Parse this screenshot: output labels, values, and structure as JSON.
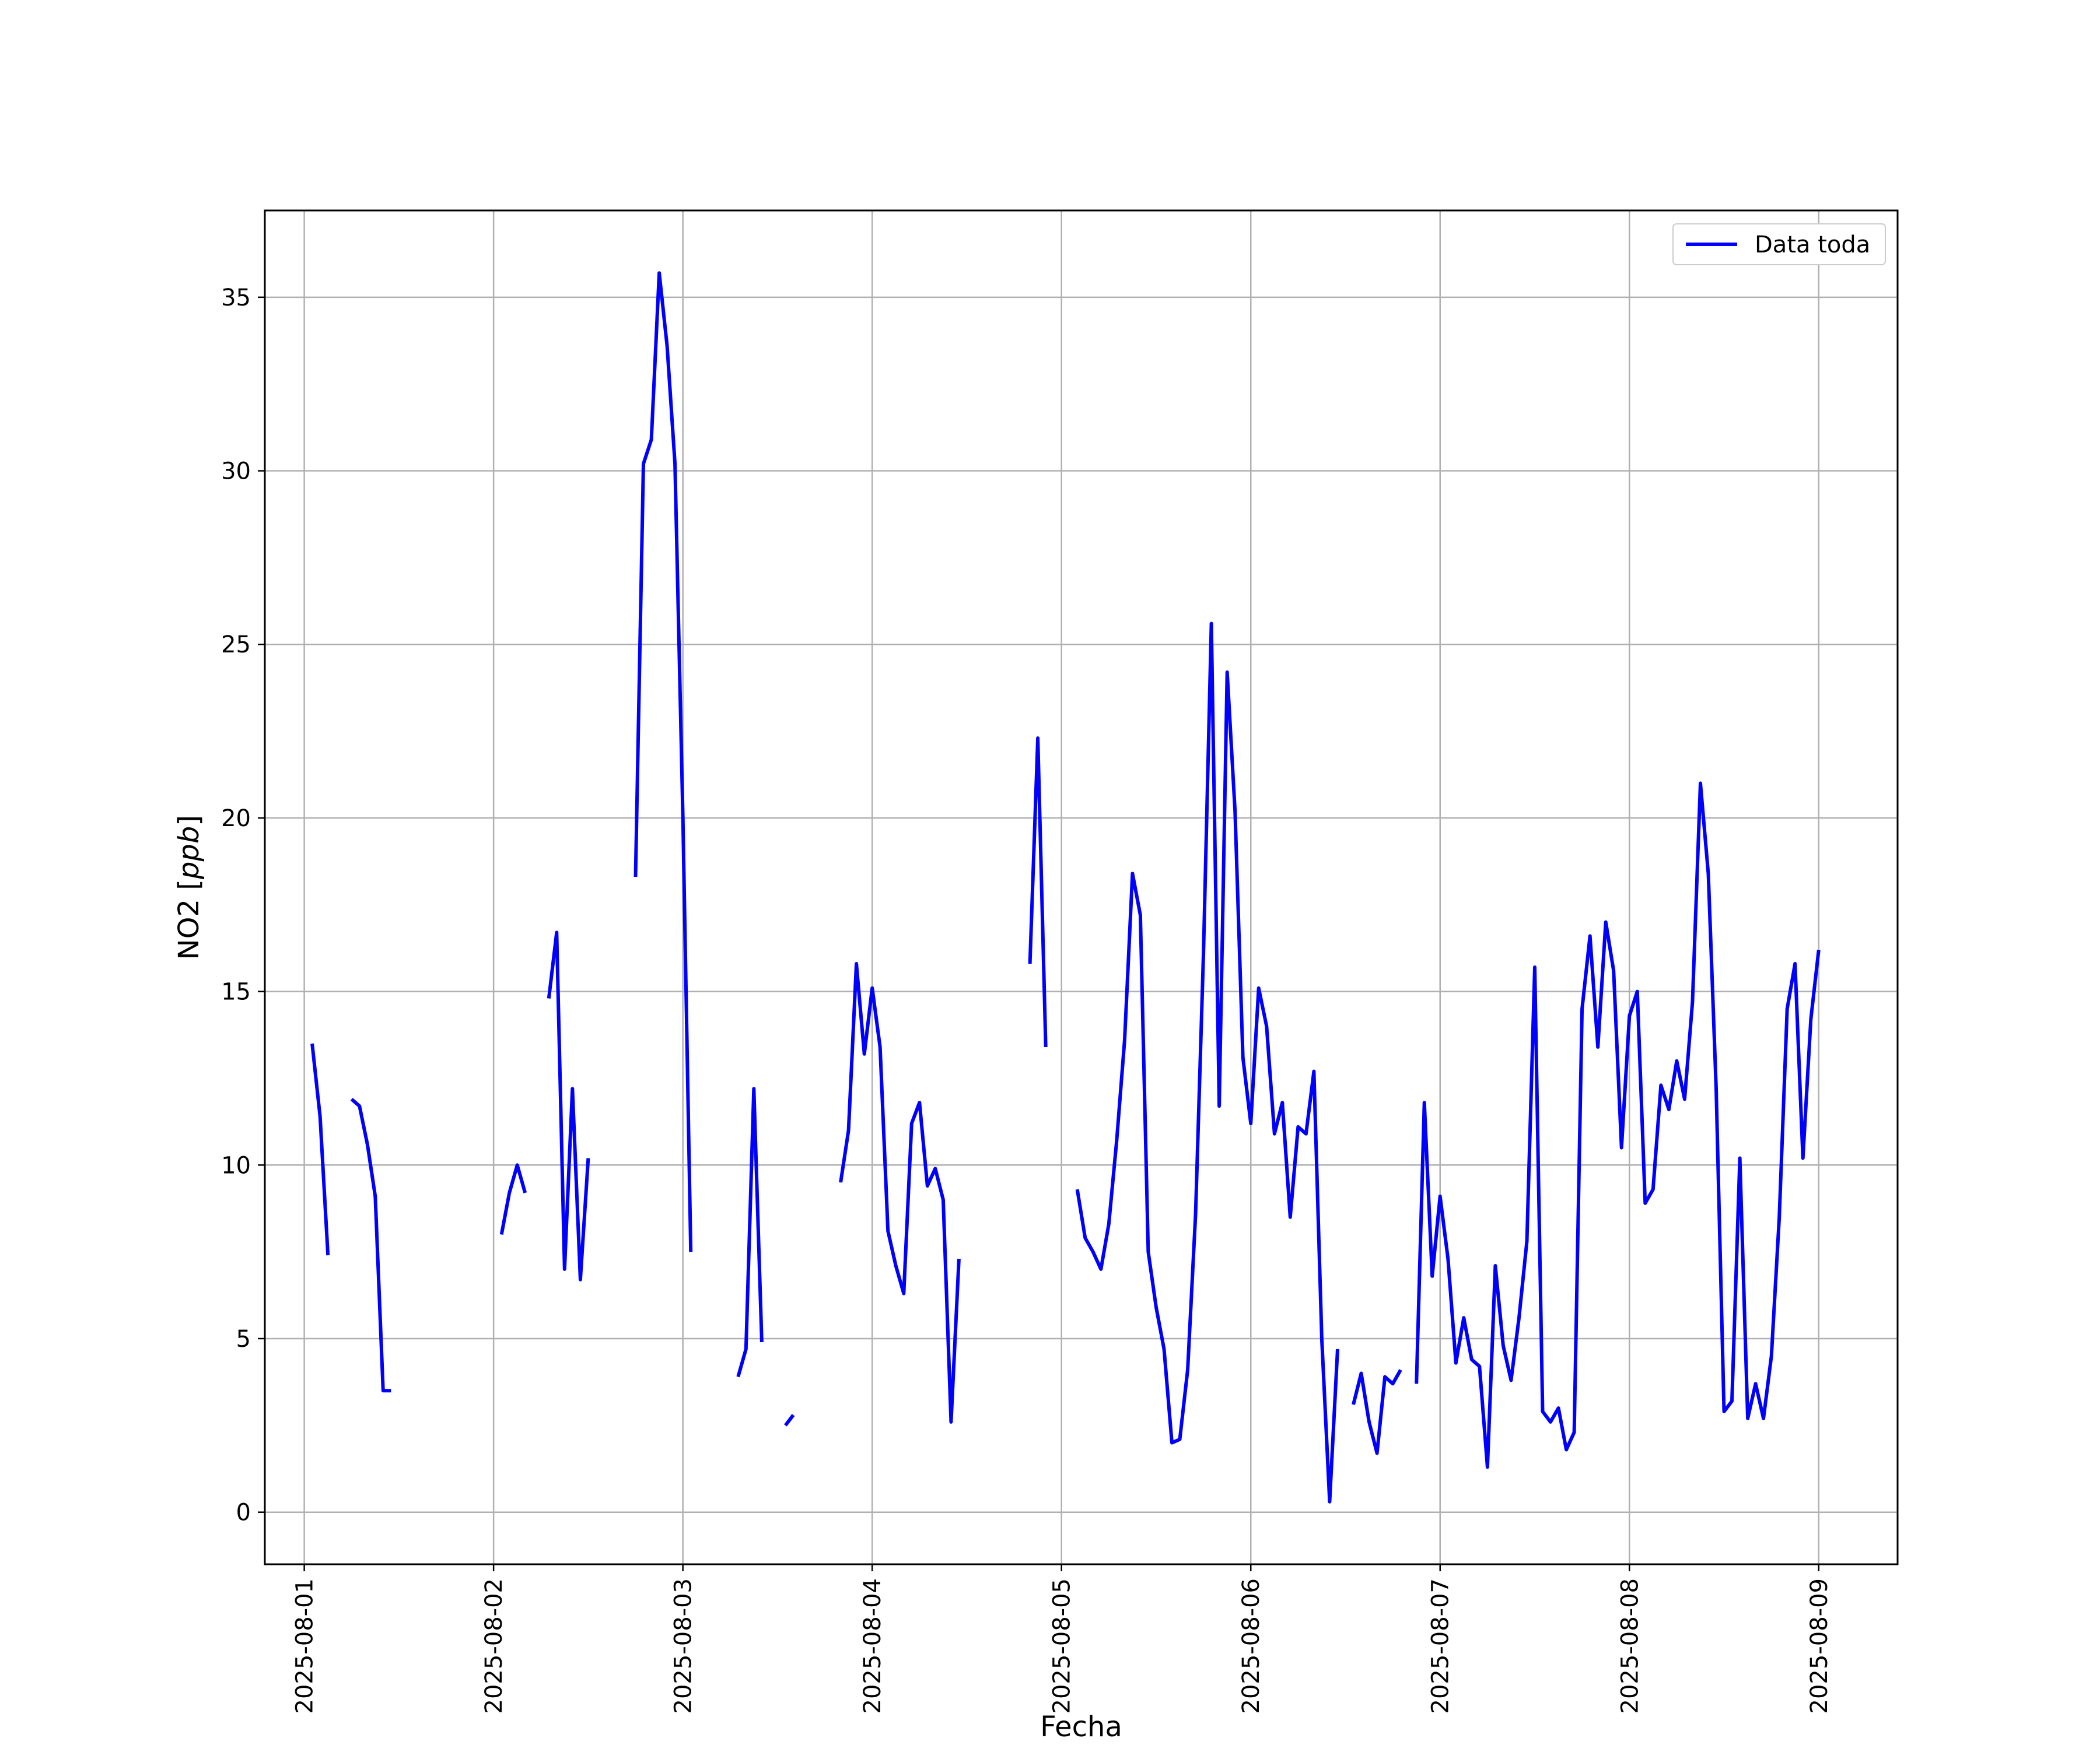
{
  "chart_data": {
    "type": "line",
    "title": "",
    "xlabel": "Fecha",
    "ylabel_prefix": "NO2 [",
    "ylabel_unit": "ppb",
    "ylabel_suffix": "]",
    "x_type": "datetime",
    "xlim": [
      "2025-07-31T19:00",
      "2025-08-09T10:00"
    ],
    "ylim": [
      -1.5,
      37.5
    ],
    "x_ticks": [
      "2025-08-01",
      "2025-08-02",
      "2025-08-03",
      "2025-08-04",
      "2025-08-05",
      "2025-08-06",
      "2025-08-07",
      "2025-08-08",
      "2025-08-09"
    ],
    "y_ticks": [
      0,
      5,
      10,
      15,
      20,
      25,
      30,
      35
    ],
    "grid": true,
    "legend_position": "upper-right",
    "series": [
      {
        "name": "Data toda",
        "color": "#0000ff",
        "x": [
          "2025-08-01T01:00",
          "2025-08-01T02:00",
          "2025-08-01T03:00",
          null,
          "2025-08-01T06:00",
          "2025-08-01T07:00",
          "2025-08-01T08:00",
          "2025-08-01T09:00",
          "2025-08-01T10:00",
          "2025-08-01T11:00",
          null,
          "2025-08-02T01:00",
          "2025-08-02T02:00",
          "2025-08-02T03:00",
          "2025-08-02T04:00",
          null,
          "2025-08-02T07:00",
          "2025-08-02T08:00",
          "2025-08-02T09:00",
          "2025-08-02T10:00",
          "2025-08-02T11:00",
          "2025-08-02T12:00",
          null,
          "2025-08-02T18:00",
          "2025-08-02T19:00",
          "2025-08-02T20:00",
          "2025-08-02T21:00",
          "2025-08-02T22:00",
          "2025-08-02T23:00",
          "2025-08-03T00:00",
          "2025-08-03T01:00",
          null,
          "2025-08-03T07:00",
          "2025-08-03T08:00",
          "2025-08-03T09:00",
          "2025-08-03T10:00",
          null,
          "2025-08-03T13:00",
          "2025-08-03T14:00",
          null,
          "2025-08-03T20:00",
          "2025-08-03T21:00",
          "2025-08-03T22:00",
          "2025-08-03T23:00",
          "2025-08-04T00:00",
          "2025-08-04T01:00",
          "2025-08-04T02:00",
          "2025-08-04T03:00",
          "2025-08-04T04:00",
          "2025-08-04T05:00",
          "2025-08-04T06:00",
          "2025-08-04T07:00",
          "2025-08-04T08:00",
          "2025-08-04T09:00",
          "2025-08-04T10:00",
          "2025-08-04T11:00",
          null,
          "2025-08-04T20:00",
          "2025-08-04T21:00",
          "2025-08-04T22:00",
          null,
          "2025-08-05T02:00",
          "2025-08-05T03:00",
          "2025-08-05T04:00",
          "2025-08-05T05:00",
          "2025-08-05T06:00",
          "2025-08-05T07:00",
          "2025-08-05T08:00",
          "2025-08-05T09:00",
          "2025-08-05T10:00",
          "2025-08-05T11:00",
          "2025-08-05T12:00",
          "2025-08-05T13:00",
          "2025-08-05T14:00",
          "2025-08-05T15:00",
          "2025-08-05T16:00",
          "2025-08-05T17:00",
          "2025-08-05T18:00",
          "2025-08-05T19:00",
          "2025-08-05T20:00",
          "2025-08-05T21:00",
          "2025-08-05T22:00",
          "2025-08-05T23:00",
          "2025-08-06T00:00",
          "2025-08-06T01:00",
          "2025-08-06T02:00",
          "2025-08-06T03:00",
          "2025-08-06T04:00",
          "2025-08-06T05:00",
          "2025-08-06T06:00",
          "2025-08-06T07:00",
          "2025-08-06T08:00",
          "2025-08-06T09:00",
          "2025-08-06T10:00",
          "2025-08-06T11:00",
          null,
          "2025-08-06T13:00",
          "2025-08-06T14:00",
          "2025-08-06T15:00",
          "2025-08-06T16:00",
          "2025-08-06T17:00",
          "2025-08-06T18:00",
          "2025-08-06T19:00",
          null,
          "2025-08-06T21:00",
          "2025-08-06T22:00",
          "2025-08-06T23:00",
          "2025-08-07T00:00",
          "2025-08-07T01:00",
          "2025-08-07T02:00",
          "2025-08-07T03:00",
          "2025-08-07T04:00",
          "2025-08-07T05:00",
          "2025-08-07T06:00",
          "2025-08-07T07:00",
          "2025-08-07T08:00",
          "2025-08-07T09:00",
          "2025-08-07T10:00",
          "2025-08-07T11:00",
          "2025-08-07T12:00",
          "2025-08-07T13:00",
          "2025-08-07T14:00",
          "2025-08-07T15:00",
          "2025-08-07T16:00",
          "2025-08-07T17:00",
          "2025-08-07T18:00",
          "2025-08-07T19:00",
          "2025-08-07T20:00",
          "2025-08-07T21:00",
          "2025-08-07T22:00",
          "2025-08-07T23:00",
          "2025-08-08T00:00",
          "2025-08-08T01:00",
          "2025-08-08T02:00",
          "2025-08-08T03:00",
          "2025-08-08T04:00",
          "2025-08-08T05:00",
          "2025-08-08T06:00",
          "2025-08-08T07:00",
          "2025-08-08T08:00",
          "2025-08-08T09:00",
          "2025-08-08T10:00",
          "2025-08-08T11:00",
          "2025-08-08T12:00",
          "2025-08-08T13:00",
          "2025-08-08T14:00",
          "2025-08-08T15:00",
          "2025-08-08T16:00",
          "2025-08-08T17:00",
          "2025-08-08T18:00",
          "2025-08-08T19:00",
          "2025-08-08T20:00",
          "2025-08-08T21:00",
          "2025-08-08T22:00",
          "2025-08-08T23:00",
          "2025-08-09T00:00"
        ],
        "y": [
          13.5,
          11.4,
          7.4,
          null,
          11.9,
          11.7,
          10.6,
          9.1,
          3.5,
          3.5,
          null,
          8.0,
          9.2,
          10.0,
          9.2,
          null,
          14.8,
          16.7,
          7.0,
          12.2,
          6.7,
          10.2,
          null,
          18.3,
          30.2,
          30.9,
          35.7,
          33.6,
          30.2,
          20.0,
          7.5,
          null,
          3.9,
          4.7,
          12.2,
          4.9,
          null,
          2.5,
          2.8,
          null,
          9.5,
          11.0,
          15.8,
          13.2,
          15.1,
          13.4,
          8.1,
          7.1,
          6.3,
          11.2,
          11.8,
          9.4,
          9.9,
          9.0,
          2.6,
          7.3,
          null,
          15.8,
          22.3,
          13.4,
          null,
          9.3,
          7.9,
          7.5,
          7.0,
          8.3,
          10.7,
          13.6,
          18.4,
          17.2,
          7.5,
          5.9,
          4.7,
          2.0,
          2.1,
          4.1,
          8.6,
          16.1,
          25.6,
          11.7,
          24.2,
          20.2,
          13.1,
          11.2,
          15.1,
          14.0,
          10.9,
          11.8,
          8.5,
          11.1,
          10.9,
          12.7,
          5.0,
          0.3,
          4.7,
          null,
          3.1,
          4.0,
          2.6,
          1.7,
          3.9,
          3.7,
          4.1,
          null,
          3.7,
          11.8,
          6.8,
          9.1,
          7.3,
          4.3,
          5.6,
          4.4,
          4.2,
          1.3,
          7.1,
          4.8,
          3.8,
          5.6,
          7.8,
          15.7,
          2.9,
          2.6,
          3.0,
          1.8,
          2.3,
          14.5,
          16.6,
          13.4,
          17.0,
          15.6,
          10.5,
          14.3,
          15.0,
          8.9,
          9.3,
          12.3,
          11.6,
          13.0,
          11.9,
          14.7,
          21.0,
          18.4,
          12.2,
          2.9,
          3.2,
          10.2,
          2.7,
          3.7,
          2.7,
          4.5,
          8.5,
          14.5,
          15.8,
          10.2,
          14.2,
          16.2
        ]
      }
    ]
  }
}
